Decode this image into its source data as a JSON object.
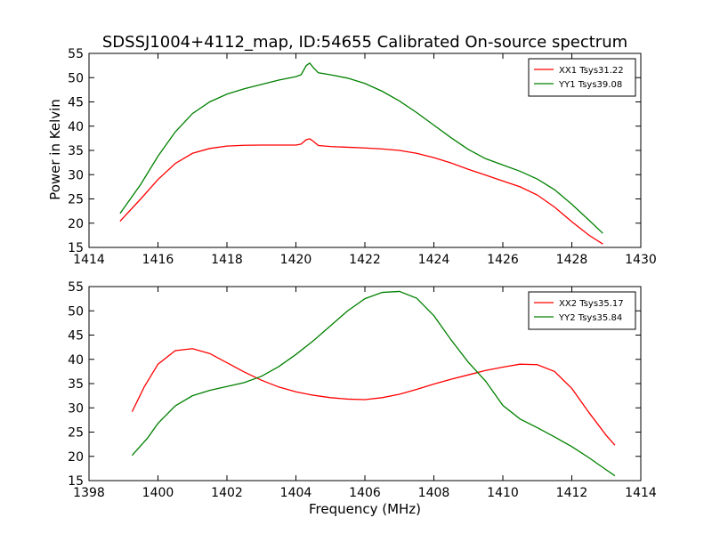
{
  "figure": {
    "title": "SDSSJ1004+4112_map, ID:54655 Calibrated On-source spectrum",
    "ylabel": "Power in Kelvin",
    "xlabel": "Frequency (MHz)"
  },
  "chart_data": [
    {
      "type": "line",
      "title": "SDSSJ1004+4112_map, ID:54655 Calibrated On-source spectrum",
      "xlabel": "",
      "ylabel": "Power in Kelvin",
      "xlim": [
        1414,
        1430
      ],
      "ylim": [
        15,
        55
      ],
      "xticks": [
        1414,
        1416,
        1418,
        1420,
        1422,
        1424,
        1426,
        1428,
        1430
      ],
      "yticks": [
        15,
        20,
        25,
        30,
        35,
        40,
        45,
        50,
        55
      ],
      "grid": false,
      "legend_position": "top-right",
      "series": [
        {
          "name": "XX1 Tsys31.22",
          "color": "#ff0000",
          "points": [
            [
              1414.9,
              20.4
            ],
            [
              1415.5,
              25.0
            ],
            [
              1416.0,
              29.0
            ],
            [
              1416.5,
              32.3
            ],
            [
              1417.0,
              34.4
            ],
            [
              1417.5,
              35.4
            ],
            [
              1418.0,
              35.9
            ],
            [
              1418.5,
              36.05
            ],
            [
              1419.0,
              36.1
            ],
            [
              1419.5,
              36.1
            ],
            [
              1420.0,
              36.1
            ],
            [
              1420.15,
              36.3
            ],
            [
              1420.3,
              37.2
            ],
            [
              1420.4,
              37.4
            ],
            [
              1420.5,
              36.9
            ],
            [
              1420.65,
              36.0
            ],
            [
              1421.0,
              35.8
            ],
            [
              1421.5,
              35.65
            ],
            [
              1422.0,
              35.5
            ],
            [
              1422.5,
              35.3
            ],
            [
              1423.0,
              35.0
            ],
            [
              1423.5,
              34.4
            ],
            [
              1424.0,
              33.5
            ],
            [
              1424.5,
              32.4
            ],
            [
              1425.0,
              31.1
            ],
            [
              1425.5,
              29.9
            ],
            [
              1426.0,
              28.7
            ],
            [
              1426.5,
              27.5
            ],
            [
              1427.0,
              25.8
            ],
            [
              1427.5,
              23.3
            ],
            [
              1428.0,
              20.3
            ],
            [
              1428.5,
              17.5
            ],
            [
              1428.9,
              15.7
            ]
          ]
        },
        {
          "name": "YY1 Tsys39.08",
          "color": "#008000",
          "points": [
            [
              1414.9,
              22.0
            ],
            [
              1415.5,
              28.0
            ],
            [
              1416.0,
              33.8
            ],
            [
              1416.5,
              38.8
            ],
            [
              1417.0,
              42.6
            ],
            [
              1417.5,
              45.0
            ],
            [
              1418.0,
              46.6
            ],
            [
              1418.5,
              47.7
            ],
            [
              1419.0,
              48.6
            ],
            [
              1419.5,
              49.5
            ],
            [
              1420.0,
              50.2
            ],
            [
              1420.15,
              50.6
            ],
            [
              1420.3,
              52.5
            ],
            [
              1420.4,
              53.0
            ],
            [
              1420.5,
              52.1
            ],
            [
              1420.65,
              51.0
            ],
            [
              1421.0,
              50.6
            ],
            [
              1421.5,
              49.9
            ],
            [
              1422.0,
              48.8
            ],
            [
              1422.5,
              47.2
            ],
            [
              1423.0,
              45.2
            ],
            [
              1423.5,
              42.8
            ],
            [
              1424.0,
              40.2
            ],
            [
              1424.5,
              37.6
            ],
            [
              1425.0,
              35.2
            ],
            [
              1425.5,
              33.3
            ],
            [
              1426.0,
              32.0
            ],
            [
              1426.5,
              30.7
            ],
            [
              1427.0,
              29.1
            ],
            [
              1427.5,
              26.9
            ],
            [
              1428.0,
              23.9
            ],
            [
              1428.5,
              20.6
            ],
            [
              1428.9,
              17.9
            ]
          ]
        }
      ]
    },
    {
      "type": "line",
      "title": "",
      "xlabel": "Frequency (MHz)",
      "ylabel": "",
      "xlim": [
        1398,
        1414
      ],
      "ylim": [
        15,
        55
      ],
      "xticks": [
        1398,
        1400,
        1402,
        1404,
        1406,
        1408,
        1410,
        1412,
        1414
      ],
      "yticks": [
        15,
        20,
        25,
        30,
        35,
        40,
        45,
        50,
        55
      ],
      "grid": false,
      "legend_position": "top-right",
      "series": [
        {
          "name": "XX2 Tsys35.17",
          "color": "#ff0000",
          "points": [
            [
              1399.25,
              29.2
            ],
            [
              1399.6,
              34.3
            ],
            [
              1400.0,
              39.0
            ],
            [
              1400.5,
              41.8
            ],
            [
              1401.0,
              42.2
            ],
            [
              1401.5,
              41.2
            ],
            [
              1402.0,
              39.3
            ],
            [
              1402.5,
              37.4
            ],
            [
              1403.0,
              35.7
            ],
            [
              1403.5,
              34.3
            ],
            [
              1404.0,
              33.3
            ],
            [
              1404.5,
              32.6
            ],
            [
              1405.0,
              32.1
            ],
            [
              1405.5,
              31.8
            ],
            [
              1406.0,
              31.7
            ],
            [
              1406.5,
              32.1
            ],
            [
              1407.0,
              32.8
            ],
            [
              1407.5,
              33.8
            ],
            [
              1408.0,
              34.9
            ],
            [
              1408.5,
              35.9
            ],
            [
              1409.0,
              36.8
            ],
            [
              1409.5,
              37.7
            ],
            [
              1410.0,
              38.4
            ],
            [
              1410.5,
              39.0
            ],
            [
              1411.0,
              38.9
            ],
            [
              1411.5,
              37.5
            ],
            [
              1412.0,
              34.0
            ],
            [
              1412.5,
              29.0
            ],
            [
              1413.0,
              24.3
            ],
            [
              1413.25,
              22.3
            ]
          ]
        },
        {
          "name": "YY2 Tsys35.84",
          "color": "#008000",
          "points": [
            [
              1399.25,
              20.2
            ],
            [
              1399.7,
              23.8
            ],
            [
              1400.0,
              26.8
            ],
            [
              1400.5,
              30.4
            ],
            [
              1401.0,
              32.5
            ],
            [
              1401.5,
              33.6
            ],
            [
              1402.0,
              34.4
            ],
            [
              1402.5,
              35.2
            ],
            [
              1403.0,
              36.5
            ],
            [
              1403.5,
              38.5
            ],
            [
              1404.0,
              41.0
            ],
            [
              1404.5,
              43.8
            ],
            [
              1405.0,
              46.9
            ],
            [
              1405.5,
              50.0
            ],
            [
              1406.0,
              52.5
            ],
            [
              1406.5,
              53.8
            ],
            [
              1407.0,
              54.0
            ],
            [
              1407.5,
              52.6
            ],
            [
              1408.0,
              49.0
            ],
            [
              1408.5,
              44.0
            ],
            [
              1409.0,
              39.4
            ],
            [
              1409.5,
              35.5
            ],
            [
              1410.0,
              30.5
            ],
            [
              1410.5,
              27.7
            ],
            [
              1411.0,
              25.9
            ],
            [
              1411.5,
              24.0
            ],
            [
              1412.0,
              22.0
            ],
            [
              1412.5,
              19.7
            ],
            [
              1413.0,
              17.2
            ],
            [
              1413.25,
              16.0
            ]
          ]
        }
      ]
    }
  ]
}
